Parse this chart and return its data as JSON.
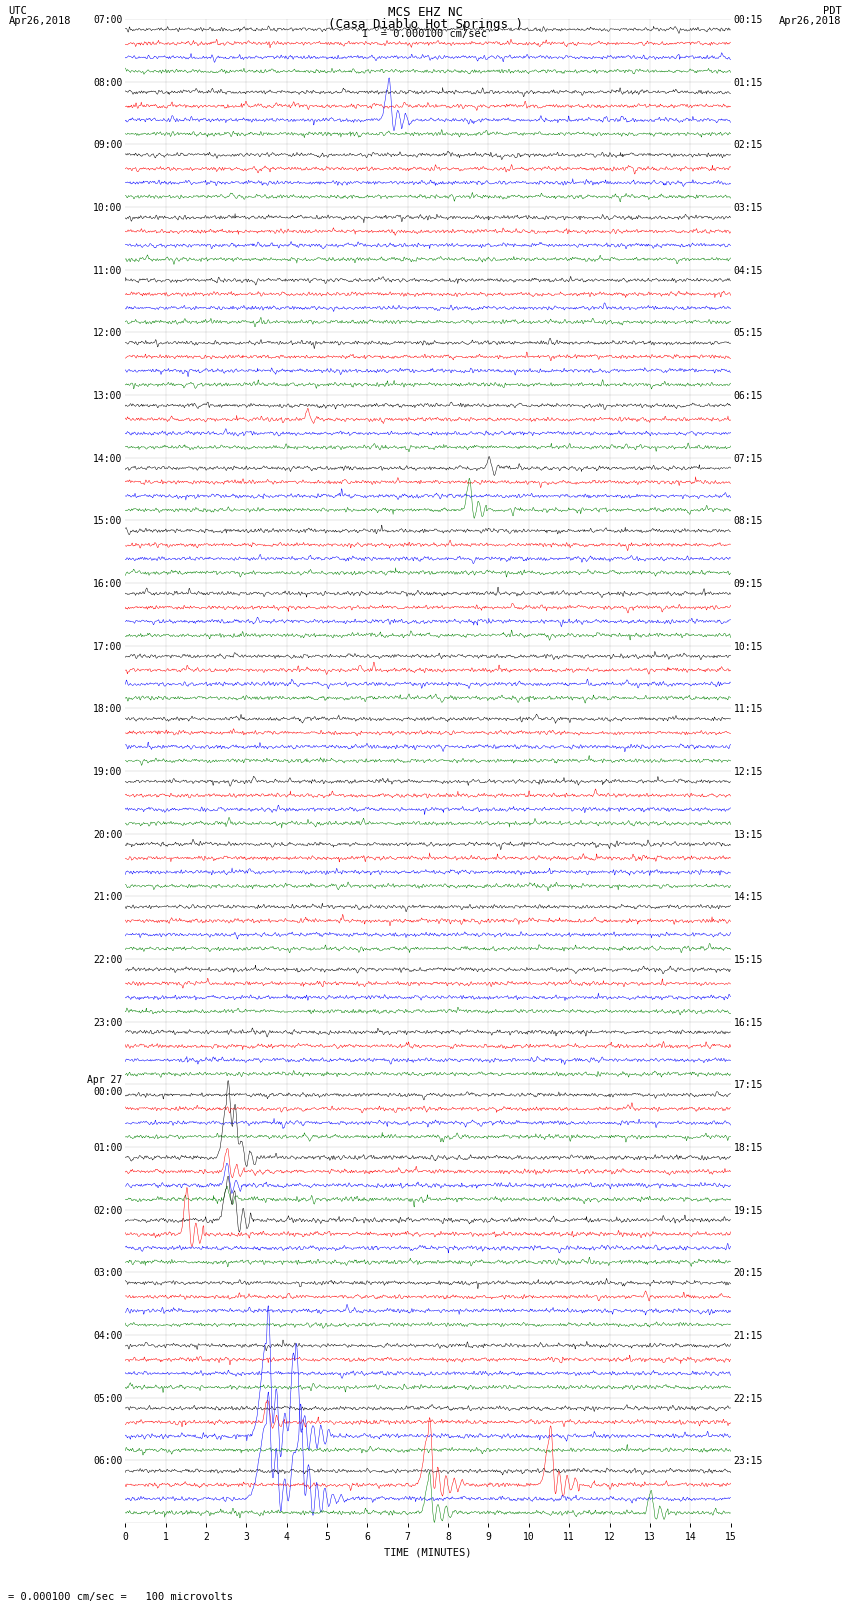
{
  "title_line1": "MCS EHZ NC",
  "title_line2": "(Casa Diablo Hot Springs )",
  "scale_label": "= 0.000100 cm/sec",
  "bottom_label": "= 0.000100 cm/sec =   100 microvolts",
  "xlabel": "TIME (MINUTES)",
  "left_times": [
    "07:00",
    "08:00",
    "09:00",
    "10:00",
    "11:00",
    "12:00",
    "13:00",
    "14:00",
    "15:00",
    "16:00",
    "17:00",
    "18:00",
    "19:00",
    "20:00",
    "21:00",
    "22:00",
    "23:00",
    "Apr 27\n00:00",
    "01:00",
    "02:00",
    "03:00",
    "04:00",
    "05:00",
    "06:00"
  ],
  "right_times": [
    "00:15",
    "01:15",
    "02:15",
    "03:15",
    "04:15",
    "05:15",
    "06:15",
    "07:15",
    "08:15",
    "09:15",
    "10:15",
    "11:15",
    "12:15",
    "13:15",
    "14:15",
    "15:15",
    "16:15",
    "17:15",
    "18:15",
    "19:15",
    "20:15",
    "21:15",
    "22:15",
    "23:15"
  ],
  "colors": [
    "black",
    "red",
    "blue",
    "green"
  ],
  "bg_color": "white",
  "n_rows": 24,
  "n_traces_per_row": 4,
  "minutes": 15,
  "font_family": "monospace",
  "title_fontsize": 9,
  "label_fontsize": 7.5,
  "tick_fontsize": 7
}
